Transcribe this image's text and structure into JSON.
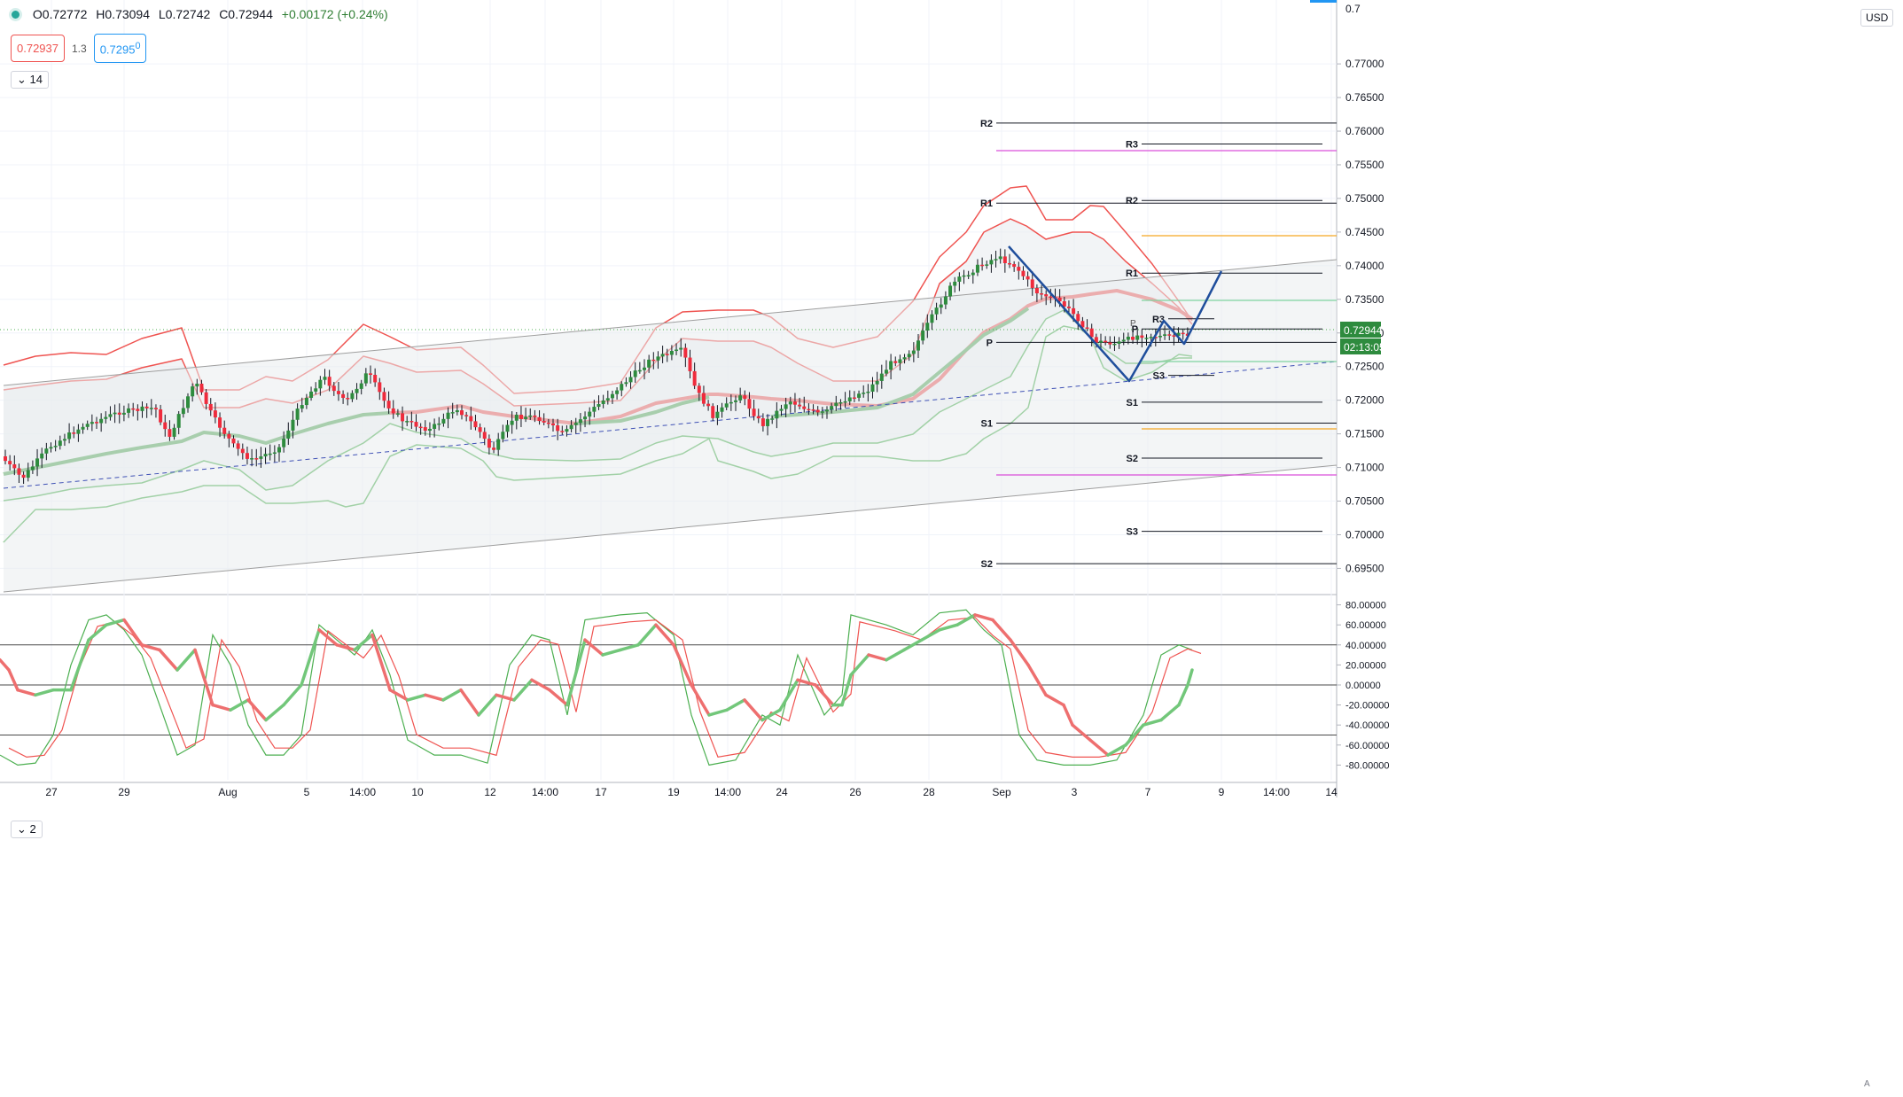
{
  "legend": {
    "open": "O0.72772",
    "high": "H0.73094",
    "low": "L0.72742",
    "close": "C0.72944",
    "change": "+0.00172 (+0.24%)",
    "bid": "0.72937",
    "spread": "1.3",
    "ask": "0.7295",
    "ask_sup": "0",
    "pane1_collapse": "14",
    "pane2_collapse": "2",
    "currency": "USD"
  },
  "price_tags": {
    "last": "0.72944",
    "countdown": "02:13:05"
  },
  "chart_data": {
    "type": "candlestick",
    "price_axis": [
      "0.77000",
      "0.76500",
      "0.76000",
      "0.75500",
      "0.75000",
      "0.74500",
      "0.74000",
      "0.73500",
      "0.73000",
      "0.72500",
      "0.72000",
      "0.71500",
      "0.71000",
      "0.70500",
      "0.70000",
      "0.69500"
    ],
    "price_axis_partial": "0.7",
    "ylim": [
      0.6915,
      0.7795
    ],
    "time_axis": [
      "27",
      "29",
      "Aug",
      "5",
      "14:00",
      "10",
      "12",
      "14:00",
      "17",
      "19",
      "14:00",
      "24",
      "26",
      "28",
      "Sep",
      "3",
      "7",
      "9",
      "14:00",
      "14"
    ],
    "levels": [
      {
        "label": "R2",
        "price": 0.7612
      },
      {
        "label": "R1",
        "price": 0.7493
      },
      {
        "label": "P",
        "price": 0.7286
      },
      {
        "label": "S1",
        "price": 0.7166
      },
      {
        "label": "S2",
        "price": 0.6957
      },
      {
        "label": "R3",
        "price": 0.7581
      },
      {
        "label": "R2",
        "price": 0.7497
      },
      {
        "label": "R1",
        "price": 0.7389
      },
      {
        "label": "P",
        "price": 0.7306
      },
      {
        "label": "S1",
        "price": 0.7197
      },
      {
        "label": "S2",
        "price": 0.7114
      },
      {
        "label": "S3",
        "price": 0.7005
      },
      {
        "label": "R3",
        "price": 0.7321
      },
      {
        "label": "S3",
        "price": 0.7237
      }
    ],
    "oscillator": {
      "axis": [
        "80.00000",
        "60.00000",
        "40.00000",
        "20.00000",
        "0.00000",
        "-20.00000",
        "-40.00000",
        "-60.00000",
        "-80.00000"
      ],
      "ylim": [
        -90,
        90
      ],
      "hlines": [
        40,
        0,
        -50
      ]
    }
  },
  "colors": {
    "up": "#2e8b3e",
    "down": "#ef2b3c",
    "band_red": "#ef5350",
    "band_green": "#4caf50",
    "trend_blue": "#1f4e9c",
    "channel": "#9e9e9e",
    "magenta": "#d94fd9",
    "orange": "#f5a623",
    "mint": "#7fd49f"
  }
}
